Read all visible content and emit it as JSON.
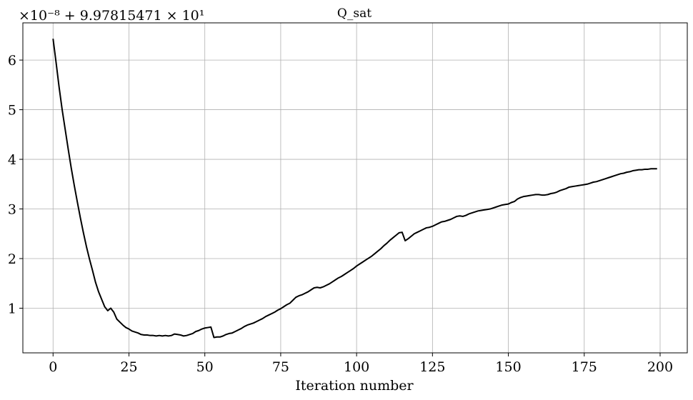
{
  "chart_data": {
    "type": "line",
    "title": "Q_sat",
    "xlabel": "Iteration number",
    "ylabel": "",
    "offset_label": "×10⁻⁸ + 9.97815471 × 10¹",
    "xlim": [
      -9.95,
      208.95
    ],
    "ylim": [
      0.1,
      6.75
    ],
    "grid": true,
    "x_ticks": [
      0,
      25,
      50,
      75,
      100,
      125,
      150,
      175,
      200
    ],
    "y_ticks": [
      1,
      2,
      3,
      4,
      5,
      6
    ],
    "series": [
      {
        "color": "#000000",
        "points": [
          [
            0,
            6.43
          ],
          [
            1,
            5.95
          ],
          [
            2,
            5.45
          ],
          [
            3,
            5.0
          ],
          [
            4,
            4.6
          ],
          [
            5,
            4.2
          ],
          [
            6,
            3.82
          ],
          [
            7,
            3.47
          ],
          [
            8,
            3.14
          ],
          [
            9,
            2.82
          ],
          [
            10,
            2.52
          ],
          [
            11,
            2.24
          ],
          [
            12,
            1.99
          ],
          [
            13,
            1.76
          ],
          [
            14,
            1.52
          ],
          [
            15,
            1.33
          ],
          [
            16,
            1.18
          ],
          [
            17,
            1.03
          ],
          [
            18,
            0.95
          ],
          [
            19,
            1.0
          ],
          [
            20,
            0.92
          ],
          [
            21,
            0.78
          ],
          [
            22,
            0.72
          ],
          [
            23,
            0.66
          ],
          [
            24,
            0.61
          ],
          [
            25,
            0.58
          ],
          [
            26,
            0.54
          ],
          [
            27,
            0.52
          ],
          [
            28,
            0.5
          ],
          [
            29,
            0.47
          ],
          [
            30,
            0.46
          ],
          [
            31,
            0.46
          ],
          [
            32,
            0.45
          ],
          [
            33,
            0.45
          ],
          [
            34,
            0.44
          ],
          [
            35,
            0.45
          ],
          [
            36,
            0.44
          ],
          [
            37,
            0.45
          ],
          [
            38,
            0.44
          ],
          [
            39,
            0.45
          ],
          [
            40,
            0.48
          ],
          [
            41,
            0.47
          ],
          [
            42,
            0.46
          ],
          [
            43,
            0.44
          ],
          [
            44,
            0.45
          ],
          [
            45,
            0.47
          ],
          [
            46,
            0.49
          ],
          [
            47,
            0.53
          ],
          [
            48,
            0.55
          ],
          [
            49,
            0.58
          ],
          [
            50,
            0.6
          ],
          [
            51,
            0.61
          ],
          [
            52,
            0.62
          ],
          [
            53,
            0.41
          ],
          [
            54,
            0.42
          ],
          [
            55,
            0.42
          ],
          [
            56,
            0.44
          ],
          [
            57,
            0.47
          ],
          [
            58,
            0.49
          ],
          [
            59,
            0.5
          ],
          [
            60,
            0.53
          ],
          [
            61,
            0.56
          ],
          [
            62,
            0.59
          ],
          [
            63,
            0.63
          ],
          [
            64,
            0.66
          ],
          [
            65,
            0.68
          ],
          [
            66,
            0.7
          ],
          [
            67,
            0.73
          ],
          [
            68,
            0.76
          ],
          [
            69,
            0.79
          ],
          [
            70,
            0.83
          ],
          [
            71,
            0.86
          ],
          [
            72,
            0.89
          ],
          [
            73,
            0.92
          ],
          [
            74,
            0.96
          ],
          [
            75,
            0.99
          ],
          [
            76,
            1.03
          ],
          [
            77,
            1.07
          ],
          [
            78,
            1.1
          ],
          [
            79,
            1.16
          ],
          [
            80,
            1.22
          ],
          [
            81,
            1.25
          ],
          [
            82,
            1.27
          ],
          [
            83,
            1.3
          ],
          [
            84,
            1.33
          ],
          [
            85,
            1.37
          ],
          [
            86,
            1.41
          ],
          [
            87,
            1.42
          ],
          [
            88,
            1.41
          ],
          [
            89,
            1.43
          ],
          [
            90,
            1.46
          ],
          [
            91,
            1.49
          ],
          [
            92,
            1.53
          ],
          [
            93,
            1.57
          ],
          [
            94,
            1.61
          ],
          [
            95,
            1.64
          ],
          [
            96,
            1.68
          ],
          [
            97,
            1.72
          ],
          [
            98,
            1.76
          ],
          [
            99,
            1.8
          ],
          [
            100,
            1.85
          ],
          [
            101,
            1.89
          ],
          [
            102,
            1.93
          ],
          [
            103,
            1.97
          ],
          [
            104,
            2.01
          ],
          [
            105,
            2.05
          ],
          [
            106,
            2.1
          ],
          [
            107,
            2.15
          ],
          [
            108,
            2.2
          ],
          [
            109,
            2.26
          ],
          [
            110,
            2.31
          ],
          [
            111,
            2.37
          ],
          [
            112,
            2.42
          ],
          [
            113,
            2.47
          ],
          [
            114,
            2.52
          ],
          [
            115,
            2.53
          ],
          [
            116,
            2.36
          ],
          [
            117,
            2.4
          ],
          [
            118,
            2.45
          ],
          [
            119,
            2.5
          ],
          [
            120,
            2.53
          ],
          [
            121,
            2.56
          ],
          [
            122,
            2.59
          ],
          [
            123,
            2.62
          ],
          [
            124,
            2.63
          ],
          [
            125,
            2.65
          ],
          [
            126,
            2.68
          ],
          [
            127,
            2.71
          ],
          [
            128,
            2.74
          ],
          [
            129,
            2.75
          ],
          [
            130,
            2.77
          ],
          [
            131,
            2.79
          ],
          [
            132,
            2.82
          ],
          [
            133,
            2.85
          ],
          [
            134,
            2.86
          ],
          [
            135,
            2.85
          ],
          [
            136,
            2.87
          ],
          [
            137,
            2.9
          ],
          [
            138,
            2.92
          ],
          [
            139,
            2.94
          ],
          [
            140,
            2.96
          ],
          [
            141,
            2.97
          ],
          [
            142,
            2.98
          ],
          [
            143,
            2.99
          ],
          [
            144,
            3.0
          ],
          [
            145,
            3.02
          ],
          [
            146,
            3.04
          ],
          [
            147,
            3.06
          ],
          [
            148,
            3.08
          ],
          [
            149,
            3.09
          ],
          [
            150,
            3.1
          ],
          [
            151,
            3.13
          ],
          [
            152,
            3.15
          ],
          [
            153,
            3.2
          ],
          [
            154,
            3.23
          ],
          [
            155,
            3.25
          ],
          [
            156,
            3.26
          ],
          [
            157,
            3.27
          ],
          [
            158,
            3.28
          ],
          [
            159,
            3.29
          ],
          [
            160,
            3.29
          ],
          [
            161,
            3.28
          ],
          [
            162,
            3.28
          ],
          [
            163,
            3.29
          ],
          [
            164,
            3.31
          ],
          [
            165,
            3.32
          ],
          [
            166,
            3.34
          ],
          [
            167,
            3.37
          ],
          [
            168,
            3.39
          ],
          [
            169,
            3.41
          ],
          [
            170,
            3.44
          ],
          [
            171,
            3.45
          ],
          [
            172,
            3.46
          ],
          [
            173,
            3.47
          ],
          [
            174,
            3.48
          ],
          [
            175,
            3.49
          ],
          [
            176,
            3.5
          ],
          [
            177,
            3.52
          ],
          [
            178,
            3.54
          ],
          [
            179,
            3.55
          ],
          [
            180,
            3.57
          ],
          [
            181,
            3.59
          ],
          [
            182,
            3.61
          ],
          [
            183,
            3.63
          ],
          [
            184,
            3.65
          ],
          [
            185,
            3.67
          ],
          [
            186,
            3.69
          ],
          [
            187,
            3.71
          ],
          [
            188,
            3.72
          ],
          [
            189,
            3.74
          ],
          [
            190,
            3.75
          ],
          [
            191,
            3.77
          ],
          [
            192,
            3.78
          ],
          [
            193,
            3.79
          ],
          [
            194,
            3.79
          ],
          [
            195,
            3.8
          ],
          [
            196,
            3.8
          ],
          [
            197,
            3.81
          ],
          [
            198,
            3.81
          ],
          [
            199,
            3.81
          ]
        ]
      }
    ]
  }
}
